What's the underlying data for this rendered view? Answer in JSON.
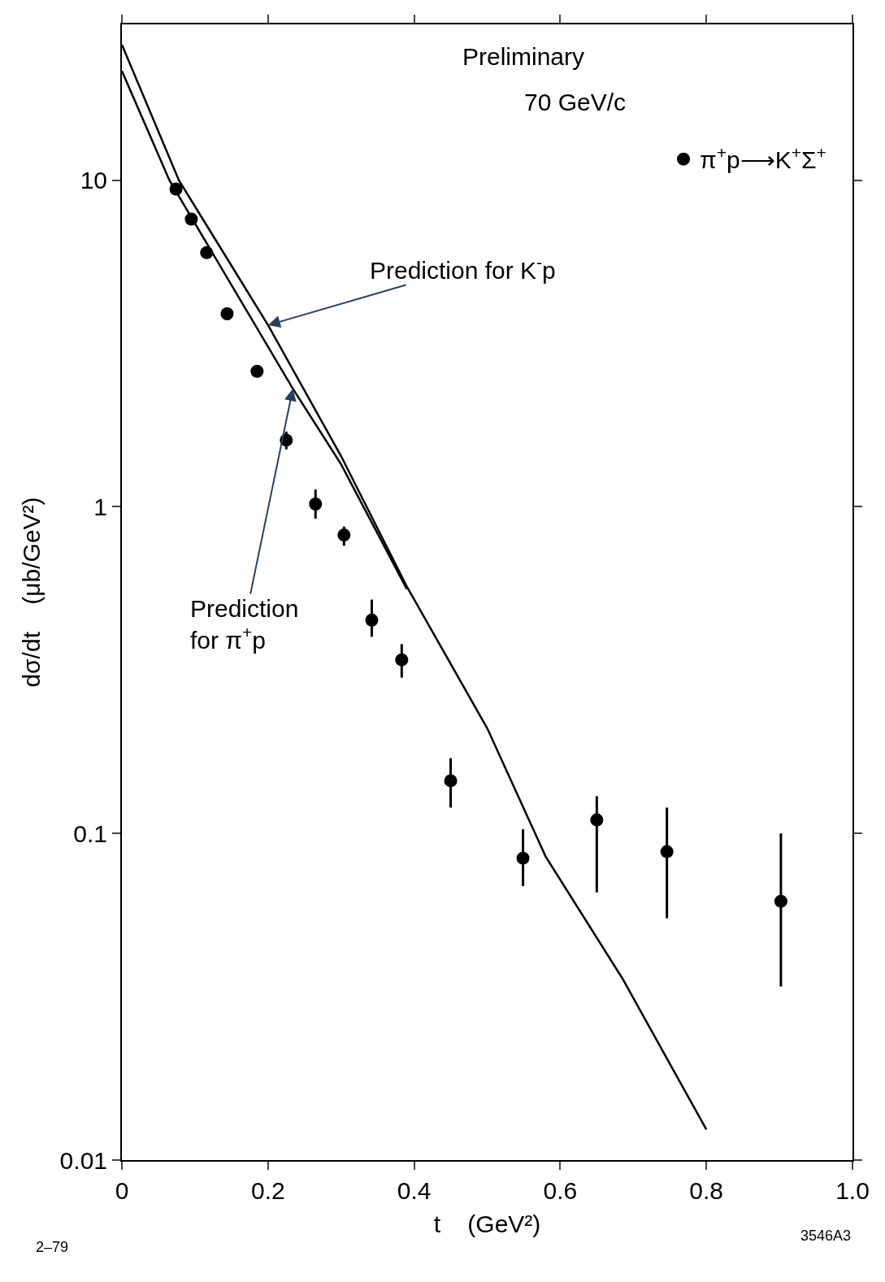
{
  "chart_data": {
    "type": "scatter",
    "xlabel": "t    (GeV²)",
    "ylabel": "dσ/dt    (μb/GeV²)",
    "xlim": [
      0,
      1.0
    ],
    "ylim": [
      0.01,
      30
    ],
    "xticks": [
      0,
      0.2,
      0.4,
      0.6,
      0.8,
      {
        "value": 1.0,
        "label": "1.0"
      }
    ],
    "yticks": [
      {
        "value": 0.01,
        "label": "0.01"
      },
      0.1,
      1,
      10
    ],
    "log": "y",
    "legend": "top right",
    "series": [
      {
        "name": "π$^{+}$p⟶K$^{+}$Σ$^{+}$",
        "marker": "circle",
        "color": "#000000",
        "x": [
          0.074,
          0.095,
          0.116,
          0.144,
          0.185,
          0.225,
          0.265,
          0.304,
          0.342,
          0.383,
          0.45,
          0.549,
          0.65,
          0.746,
          0.902
        ],
        "values": [
          9.4,
          7.6,
          6.0,
          3.9,
          2.6,
          1.6,
          1.02,
          0.82,
          0.45,
          0.34,
          0.145,
          0.084,
          0.11,
          0.088,
          0.062
        ],
        "errors": [
          null,
          null,
          null,
          null,
          null,
          [
            1.5,
            1.7
          ],
          [
            0.92,
            1.13
          ],
          [
            0.76,
            0.87
          ],
          [
            0.4,
            0.52
          ],
          [
            0.3,
            0.38
          ],
          [
            0.12,
            0.17
          ],
          [
            0.069,
            0.103
          ],
          [
            0.066,
            0.13
          ],
          [
            0.055,
            0.12
          ],
          [
            0.034,
            0.1
          ]
        ]
      },
      {
        "type": "line",
        "color": "#000000",
        "x": [
          0,
          0.078,
          0.2,
          0.3,
          0.39,
          0.5,
          0.58,
          0.685,
          0.8
        ],
        "values": [
          26,
          10,
          3.6,
          1.43,
          0.57,
          0.21,
          0.085,
          0.036,
          0.0124
        ]
      },
      {
        "type": "line",
        "color": "#000000",
        "x": [
          0,
          0.065,
          0.234,
          0.3,
          0.39
        ],
        "values": [
          21.6,
          10,
          2.3,
          1.35,
          0.56
        ]
      }
    ],
    "annotations": [
      "Preliminary",
      "70 GeV/c",
      {
        "text": "Prediction for K$^{-}$p",
        "x": 0.2,
        "y": 3.6
      },
      {
        "text": "Prediction\nfor π$^{+}$p",
        "x": 0.234,
        "y": 2.3
      },
      "2–79",
      "3546A3"
    ]
  }
}
